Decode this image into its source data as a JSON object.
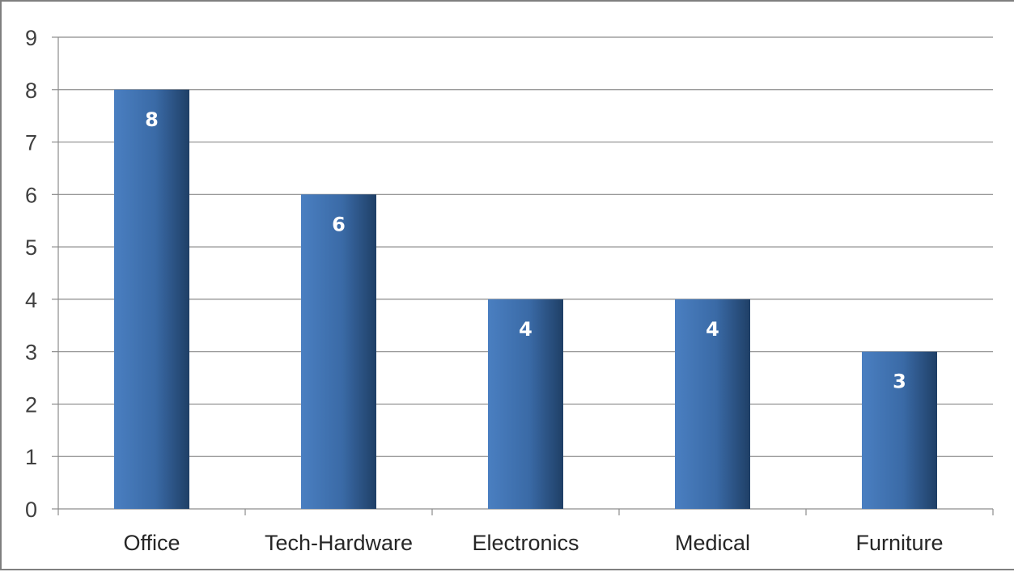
{
  "chart_data": {
    "type": "bar",
    "categories": [
      "Office",
      "Tech-Hardware",
      "Electronics",
      "Medical",
      "Furniture"
    ],
    "values": [
      8,
      6,
      4,
      4,
      3
    ],
    "data_labels": [
      "8",
      "6",
      "4",
      "4",
      "3"
    ],
    "y_ticks": [
      "0",
      "1",
      "2",
      "3",
      "4",
      "5",
      "6",
      "7",
      "8",
      "9"
    ],
    "ylim": [
      0,
      9
    ],
    "grid": true,
    "legend": "none",
    "colors": {
      "bar_light": "#4a7fc1",
      "bar_dark": "#1f3f66",
      "gridline": "#8c8c8c",
      "axis": "#8c8c8c"
    }
  }
}
